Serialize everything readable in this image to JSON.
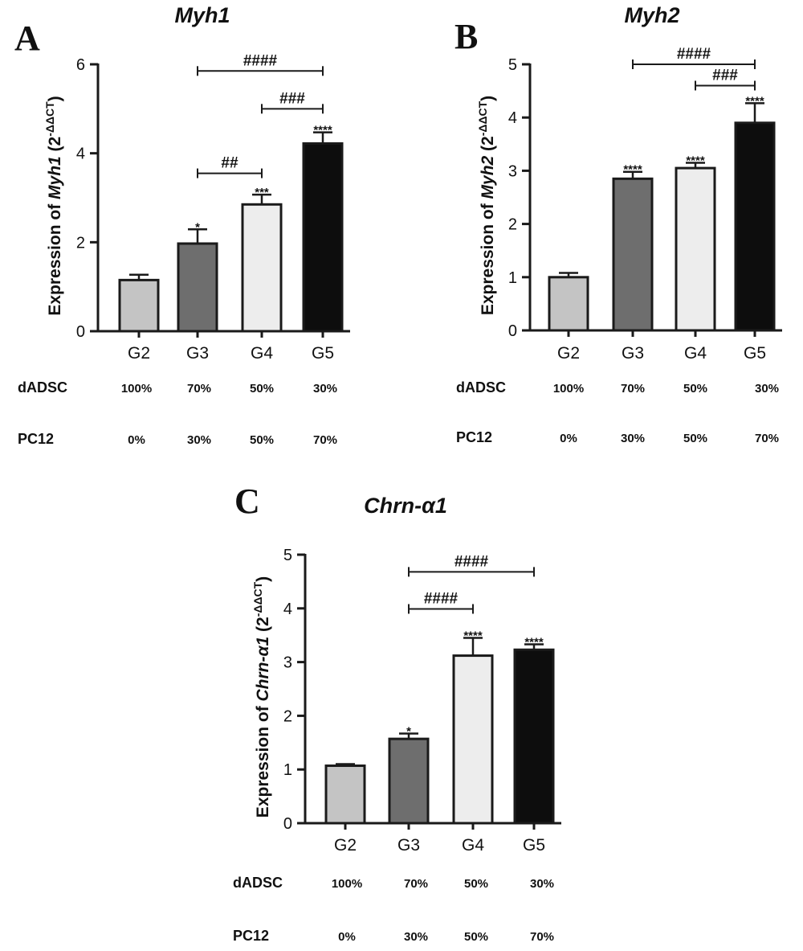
{
  "colors": {
    "G2": "#c4c4c4",
    "G3": "#6e6e6e",
    "G4": "#ededed",
    "G5": "#0d0d0d",
    "axis": "#1a1a1a"
  },
  "chart_data": [
    {
      "panel_label": "A",
      "type": "bar",
      "title": "Myh1",
      "ylabel": "Expression of Myh1 (2-ΔΔCT)",
      "ylabel_parts": {
        "prefix": "Expression of ",
        "gene": "Myh1",
        "base": " (2",
        "sup": "-ΔΔCT",
        "suffix": ")"
      },
      "categories": [
        "G2",
        "G3",
        "G4",
        "G5"
      ],
      "values": [
        1.15,
        1.97,
        2.85,
        4.22
      ],
      "errors": [
        0.12,
        0.32,
        0.22,
        0.25
      ],
      "significance": [
        "",
        "*",
        "***",
        "****"
      ],
      "ylim": [
        0,
        6
      ],
      "yticks": [
        0,
        2,
        4,
        6
      ],
      "comparisons": [
        {
          "from": 1,
          "to": 3,
          "y": 5.85,
          "label": "####"
        },
        {
          "from": 1,
          "to": 2,
          "y": 3.55,
          "label": "##"
        },
        {
          "from": 2,
          "to": 3,
          "y": 5.0,
          "label": "###"
        }
      ],
      "table": {
        "rows": [
          {
            "name": "dADSC",
            "values": [
              "100%",
              "70%",
              "50%",
              "30%"
            ]
          },
          {
            "name": "PC12",
            "values": [
              "0%",
              "30%",
              "50%",
              "70%"
            ]
          }
        ]
      }
    },
    {
      "panel_label": "B",
      "type": "bar",
      "title": "Myh2",
      "ylabel": "Expression of Myh2 (2-ΔΔCT)",
      "ylabel_parts": {
        "prefix": "Expression of ",
        "gene": "Myh2",
        "base": " (2",
        "sup": "-ΔΔCT",
        "suffix": ")"
      },
      "categories": [
        "G2",
        "G3",
        "G4",
        "G5"
      ],
      "values": [
        1.0,
        2.85,
        3.05,
        3.9
      ],
      "errors": [
        0.08,
        0.13,
        0.1,
        0.37
      ],
      "significance": [
        "",
        "****",
        "****",
        "****"
      ],
      "ylim": [
        0,
        5
      ],
      "yticks": [
        0,
        1,
        2,
        3,
        4,
        5
      ],
      "comparisons": [
        {
          "from": 1,
          "to": 3,
          "y": 5.0,
          "label": "####"
        },
        {
          "from": 2,
          "to": 3,
          "y": 4.6,
          "label": "###"
        }
      ],
      "table": {
        "rows": [
          {
            "name": "dADSC",
            "values": [
              "100%",
              "70%",
              "50%",
              "30%"
            ]
          },
          {
            "name": "PC12",
            "values": [
              "0%",
              "30%",
              "50%",
              "70%"
            ]
          }
        ]
      }
    },
    {
      "panel_label": "C",
      "type": "bar",
      "title": "Chrn-α1",
      "ylabel": "Expression of Chrn-α1 (2-ΔΔCT)",
      "ylabel_parts": {
        "prefix": "Expression of ",
        "gene": "Chrn-α1",
        "base": " (2",
        "sup": "-ΔΔCT",
        "suffix": ")"
      },
      "categories": [
        "G2",
        "G3",
        "G4",
        "G5"
      ],
      "values": [
        1.07,
        1.57,
        3.12,
        3.23
      ],
      "errors": [
        0.03,
        0.1,
        0.33,
        0.1
      ],
      "significance": [
        "",
        "*",
        "****",
        "****"
      ],
      "ylim": [
        0,
        5
      ],
      "yticks": [
        0,
        1,
        2,
        3,
        4,
        5
      ],
      "comparisons": [
        {
          "from": 1,
          "to": 3,
          "y": 4.68,
          "label": "####"
        },
        {
          "from": 1,
          "to": 2,
          "y": 3.99,
          "label": "####"
        }
      ],
      "table": {
        "rows": [
          {
            "name": "dADSC",
            "values": [
              "100%",
              "70%",
              "50%",
              "30%"
            ]
          },
          {
            "name": "PC12",
            "values": [
              "0%",
              "30%",
              "50%",
              "70%"
            ]
          }
        ]
      }
    }
  ]
}
